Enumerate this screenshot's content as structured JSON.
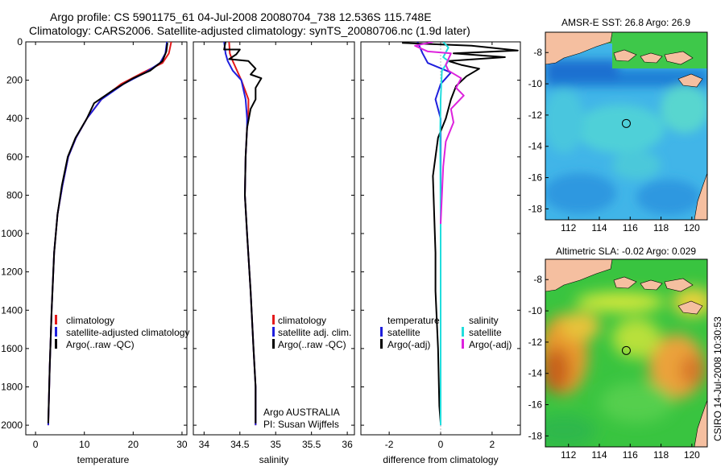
{
  "figure": {
    "title_line1": "Argo profile: CS 5901175_61 04-Jul-2008 20080704_738 12.536S 115.748E",
    "title_line2": "Climatology: CARS2006. Satellite-adjusted climatology: synTS_20080706.nc (1.9d later)",
    "credit": "CSIRO 14-Jul-2008 10:30:53"
  },
  "colors": {
    "climatology": "#e41a1c",
    "satellite": "#1f1fdd",
    "argo": "#000000",
    "sal_satellite": "#22dddd",
    "sal_argo": "#dd22dd",
    "land": "#f5bfa0"
  },
  "chart_data": [
    {
      "id": "temperature",
      "type": "line",
      "xlabel": "temperature",
      "xlim": [
        -2,
        31
      ],
      "xticks": [
        "0",
        "10",
        "20",
        "30"
      ],
      "ylim": [
        0,
        2050
      ],
      "yticks": [
        "0",
        "200",
        "400",
        "600",
        "800",
        "1000",
        "1200",
        "1400",
        "1600",
        "1800",
        "2000"
      ],
      "legend": [
        "climatology",
        "satellite-adjusted climatology",
        "Argo(..raw -QC)"
      ],
      "series": [
        {
          "name": "climatology",
          "color_key": "climatology",
          "x": [
            27.8,
            27.3,
            26.0,
            22.0,
            17.5,
            13.5,
            10.5,
            8.3,
            6.7,
            5.5,
            4.5,
            3.8,
            3.3,
            2.9,
            2.6
          ],
          "y": [
            0,
            60,
            110,
            160,
            220,
            300,
            400,
            500,
            600,
            750,
            900,
            1100,
            1400,
            1700,
            2000
          ]
        },
        {
          "name": "satellite-adjusted climatology",
          "color_key": "satellite",
          "x": [
            26.9,
            26.6,
            25.5,
            22.5,
            18.0,
            13.5,
            10.5,
            8.3,
            6.7,
            5.5,
            4.5,
            3.8,
            3.3,
            2.9,
            2.6
          ],
          "y": [
            0,
            60,
            110,
            160,
            220,
            300,
            400,
            500,
            600,
            750,
            900,
            1100,
            1400,
            1700,
            2000
          ]
        },
        {
          "name": "Argo(..raw -QC)",
          "color_key": "argo",
          "x": [
            27.0,
            26.8,
            26.0,
            23.5,
            20.0,
            16.0,
            12.0,
            10.5,
            8.2,
            6.6,
            5.4,
            4.5,
            3.8,
            3.3,
            2.9,
            2.6
          ],
          "y": [
            5,
            50,
            100,
            150,
            190,
            250,
            320,
            400,
            500,
            600,
            750,
            900,
            1100,
            1400,
            1700,
            1990
          ]
        }
      ]
    },
    {
      "id": "salinity",
      "type": "line",
      "xlabel": "salinity",
      "xlim": [
        33.85,
        36.1
      ],
      "xticks": [
        "34",
        "34.5",
        "35",
        "35.5",
        "36"
      ],
      "ylim": [
        0,
        2050
      ],
      "legend": [
        "climatology",
        "satellite adj. clim.",
        "Argo(..raw -QC)"
      ],
      "annotation_line1": "Argo AUSTRALIA",
      "annotation_line2": "PI: Susan Wijffels",
      "series": [
        {
          "name": "climatology",
          "color_key": "climatology",
          "x": [
            34.35,
            34.36,
            34.4,
            34.52,
            34.62,
            34.62,
            34.6,
            34.58,
            34.57,
            34.6,
            34.65,
            34.69,
            34.72,
            34.72
          ],
          "y": [
            0,
            60,
            100,
            200,
            300,
            350,
            450,
            600,
            800,
            1000,
            1300,
            1600,
            1800,
            2000
          ]
        },
        {
          "name": "satellite adj. clim.",
          "color_key": "satellite",
          "x": [
            34.28,
            34.3,
            34.33,
            34.4,
            34.52,
            34.58,
            34.6,
            34.6,
            34.58,
            34.57,
            34.6,
            34.65,
            34.69,
            34.72,
            34.72
          ],
          "y": [
            0,
            60,
            100,
            150,
            200,
            300,
            400,
            450,
            600,
            800,
            1000,
            1300,
            1600,
            1800,
            2000
          ]
        },
        {
          "name": "Argo(..raw -QC)",
          "color_key": "argo",
          "x": [
            34.3,
            34.28,
            34.5,
            34.45,
            34.35,
            34.62,
            34.72,
            34.65,
            34.8,
            34.72,
            34.72,
            34.65,
            34.6,
            34.58,
            34.57,
            34.6,
            34.65,
            34.69,
            34.72,
            34.72
          ],
          "y": [
            0,
            40,
            40,
            65,
            90,
            100,
            140,
            170,
            190,
            240,
            300,
            350,
            450,
            600,
            800,
            1000,
            1300,
            1600,
            1800,
            1990
          ]
        }
      ]
    },
    {
      "id": "difference",
      "type": "line",
      "xlabel": "difference from climatology",
      "xlim": [
        -3.1,
        3.1
      ],
      "xticks": [
        "-2",
        "0",
        "2"
      ],
      "ylim": [
        0,
        2050
      ],
      "legend_temperature": [
        "temperature",
        "satellite",
        "Argo(-adj)"
      ],
      "legend_salinity": [
        "salinity",
        "satellite",
        "Argo(-adj)"
      ],
      "series": [
        {
          "name": "temperature satellite",
          "color_key": "satellite",
          "x": [
            -0.9,
            -0.7,
            -0.5,
            0.4,
            0.0,
            -0.2,
            0.0,
            0.0,
            0.0,
            0.0,
            0.0
          ],
          "y": [
            0,
            60,
            110,
            160,
            220,
            300,
            400,
            600,
            1000,
            1500,
            2000
          ]
        },
        {
          "name": "temperature Argo(-adj)",
          "color_key": "argo",
          "x": [
            -1.5,
            1.2,
            3.0,
            0.5,
            2.5,
            0.3,
            0.8,
            1.5,
            1.0,
            0.6,
            0.4,
            0.2,
            -0.1,
            -0.2,
            -0.3,
            -0.25,
            -0.2,
            -0.2,
            -0.1,
            -0.05,
            0.0
          ],
          "y": [
            5,
            20,
            45,
            60,
            80,
            100,
            120,
            140,
            180,
            230,
            300,
            400,
            500,
            600,
            700,
            900,
            1100,
            1300,
            1600,
            1900,
            1990
          ]
        },
        {
          "name": "salinity satellite",
          "color_key": "sal_satellite",
          "x": [
            0.1,
            0.3,
            0.1,
            0.3,
            0.05,
            0.0,
            -0.02,
            0.0,
            0.0,
            0.0
          ],
          "y": [
            0,
            30,
            80,
            100,
            150,
            300,
            500,
            900,
            1500,
            2000
          ]
        },
        {
          "name": "salinity Argo(-adj)",
          "color_key": "sal_argo",
          "x": [
            -0.3,
            -1.0,
            -0.5,
            0.4,
            0.2,
            0.3,
            0.8,
            0.6,
            0.9,
            0.4,
            0.5,
            0.2,
            0.1,
            0.05,
            0.0
          ],
          "y": [
            0,
            20,
            50,
            60,
            120,
            150,
            190,
            240,
            280,
            350,
            420,
            520,
            650,
            800,
            950
          ]
        }
      ]
    },
    {
      "id": "sst_map",
      "type": "heatmap",
      "title": "AMSR-E SST: 26.8 Argo: 26.9",
      "xlim": [
        110.5,
        121
      ],
      "ylim": [
        -18.7,
        -6.7
      ],
      "xticks": [
        "112",
        "114",
        "116",
        "118",
        "120"
      ],
      "yticks": [
        "-8",
        "-10",
        "-12",
        "-14",
        "-16",
        "-18"
      ],
      "marker": {
        "lon": 115.748,
        "lat": -12.536
      }
    },
    {
      "id": "sla_map",
      "type": "heatmap",
      "title": "Altimetric SLA: -0.02 Argo: 0.029",
      "xlim": [
        110.5,
        121
      ],
      "ylim": [
        -18.7,
        -6.7
      ],
      "xticks": [
        "112",
        "114",
        "116",
        "118",
        "120"
      ],
      "yticks": [
        "-8",
        "-10",
        "-12",
        "-14",
        "-16",
        "-18"
      ],
      "marker": {
        "lon": 115.748,
        "lat": -12.536
      }
    }
  ]
}
